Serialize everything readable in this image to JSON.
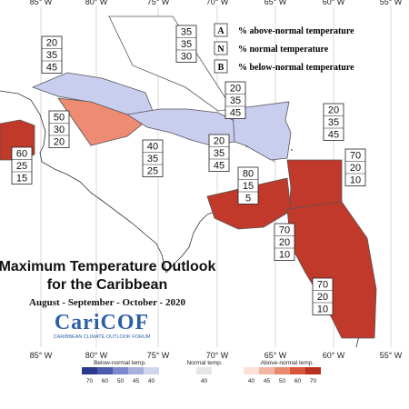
{
  "longitude_labels": [
    "85° W",
    "80° W",
    "75° W",
    "70° W",
    "65° W",
    "60° W",
    "55° W"
  ],
  "legend_key": [
    {
      "letter": "A",
      "text": "% above-normal temperature"
    },
    {
      "letter": "N",
      "text": "% normal temperature"
    },
    {
      "letter": "B",
      "text": "% below-normal temperature"
    }
  ],
  "probability_boxes": [
    {
      "region": "bahamas",
      "values": [
        "35",
        "35",
        "30"
      ]
    },
    {
      "region": "cuba",
      "values": [
        "20",
        "35",
        "45"
      ]
    },
    {
      "region": "cayman",
      "values": [
        "50",
        "30",
        "20"
      ]
    },
    {
      "region": "belize",
      "values": [
        "60",
        "25",
        "15"
      ]
    },
    {
      "region": "jamaica",
      "values": [
        "40",
        "35",
        "25"
      ]
    },
    {
      "region": "turks-caicos",
      "values": [
        "20",
        "35",
        "45"
      ]
    },
    {
      "region": "hispaniola",
      "values": [
        "20",
        "35",
        "45"
      ]
    },
    {
      "region": "leeward-islands",
      "values": [
        "20",
        "35",
        "45"
      ]
    },
    {
      "region": "windward-islands",
      "values": [
        "70",
        "20",
        "10"
      ]
    },
    {
      "region": "abc-islands",
      "values": [
        "80",
        "15",
        "5"
      ]
    },
    {
      "region": "trinidad",
      "values": [
        "70",
        "20",
        "10"
      ]
    },
    {
      "region": "guianas",
      "values": [
        "70",
        "20",
        "10"
      ]
    }
  ],
  "title": {
    "line1": "Maximum Temperature Outlook",
    "line2": "for the Caribbean",
    "period": "August - September - October - 2020"
  },
  "logo": {
    "name": "CariCOF",
    "tagline": "CARIBBEAN CLIMATE OUTLOOK FORUM"
  },
  "legend": {
    "below_label": "Below-normal temp.",
    "normal_label": "Normal temp.",
    "above_label": "Above-normal temp.",
    "below_ticks": [
      "70",
      "60",
      "50",
      "45",
      "40"
    ],
    "normal_ticks": [
      "40"
    ],
    "above_ticks": [
      "40",
      "45",
      "50",
      "60",
      "70"
    ],
    "below_colors": [
      "#2b3a8c",
      "#4b5cb0",
      "#7d89cc",
      "#a8b1de",
      "#d0d5ee"
    ],
    "normal_color": "#e6e6e6",
    "above_colors": [
      "#fbe0d8",
      "#f3b6a3",
      "#e98a6f",
      "#d9553a",
      "#b8321f"
    ]
  },
  "colors": {
    "below_40": "#c9cdee",
    "above_50": "#ee8b73",
    "above_60": "#c0392b"
  }
}
